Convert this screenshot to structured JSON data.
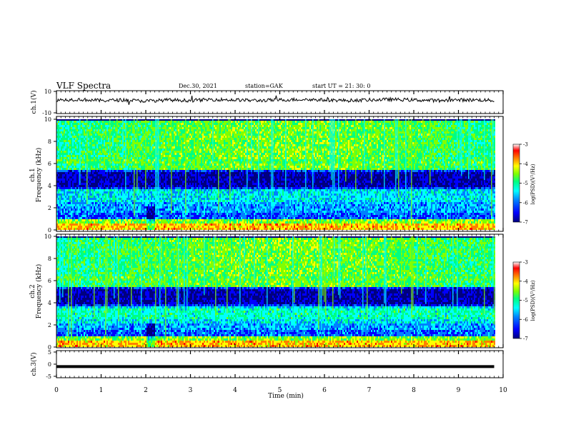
{
  "header": {
    "title": "VLF Spectra",
    "date": "Dec.30, 2021",
    "station": "station=GAK",
    "start": "start  UT =   21: 30: 0"
  },
  "colors": {
    "background": "#000080",
    "colormap": [
      "#00007f",
      "#0000ff",
      "#0080ff",
      "#00ffff",
      "#00ff80",
      "#80ff00",
      "#ffff00",
      "#ff8000",
      "#ff0000",
      "#ffffff"
    ]
  },
  "chart_data": [
    {
      "type": "line",
      "panel": "ch1-waveform",
      "ylabel": "ch.1(V)",
      "ylim": [
        -10,
        10
      ],
      "y_ticks": [
        "10",
        "-10"
      ],
      "x": [
        0,
        0.5,
        1,
        1.5,
        2,
        2.5,
        3,
        3.5,
        4,
        4.5,
        5,
        5.5,
        6,
        6.5,
        7,
        7.5,
        8,
        8.5,
        9,
        9.5,
        9.8
      ],
      "values": [
        2,
        2.5,
        1.5,
        2,
        1,
        2,
        1.5,
        2.5,
        2,
        1.5,
        2,
        2.5,
        2,
        1.5,
        2,
        2.5,
        2,
        1.5,
        2,
        2,
        1.5
      ]
    },
    {
      "type": "heatmap",
      "panel": "ch1-spectrogram",
      "ylabel": "ch.1",
      "ylabel2": "Frequency (kHz)",
      "ylim": [
        0,
        10
      ],
      "y_ticks": [
        "0",
        "2",
        "4",
        "6",
        "8",
        "10"
      ],
      "colorbar": {
        "label": "log(PSD)(V²/Hz)",
        "ticks": [
          "-3",
          "-4",
          "-5",
          "-6",
          "-7"
        ],
        "range": [
          -7,
          -3
        ]
      }
    },
    {
      "type": "heatmap",
      "panel": "ch2-spectrogram",
      "ylabel": "ch.2",
      "ylabel2": "Frequency (kHz)",
      "ylim": [
        0,
        10
      ],
      "y_ticks": [
        "0",
        "2",
        "4",
        "6",
        "8",
        "10"
      ],
      "colorbar": {
        "label": "log(PSD)(V²/Hz)",
        "ticks": [
          "-3",
          "-4",
          "-5",
          "-6",
          "-7"
        ],
        "range": [
          -7,
          -3
        ]
      }
    },
    {
      "type": "line",
      "panel": "ch3-waveform",
      "ylabel": "ch.3(V)",
      "ylim": [
        -5,
        5
      ],
      "y_ticks": [
        "5",
        "0",
        "-5"
      ],
      "x": [
        0,
        9.8
      ],
      "values": [
        -1,
        -1
      ]
    }
  ],
  "x_axis": {
    "label": "Time (min)",
    "ticks": [
      "0",
      "1",
      "2",
      "3",
      "4",
      "5",
      "6",
      "7",
      "8",
      "9",
      "10"
    ],
    "xlim": [
      0,
      10
    ]
  }
}
